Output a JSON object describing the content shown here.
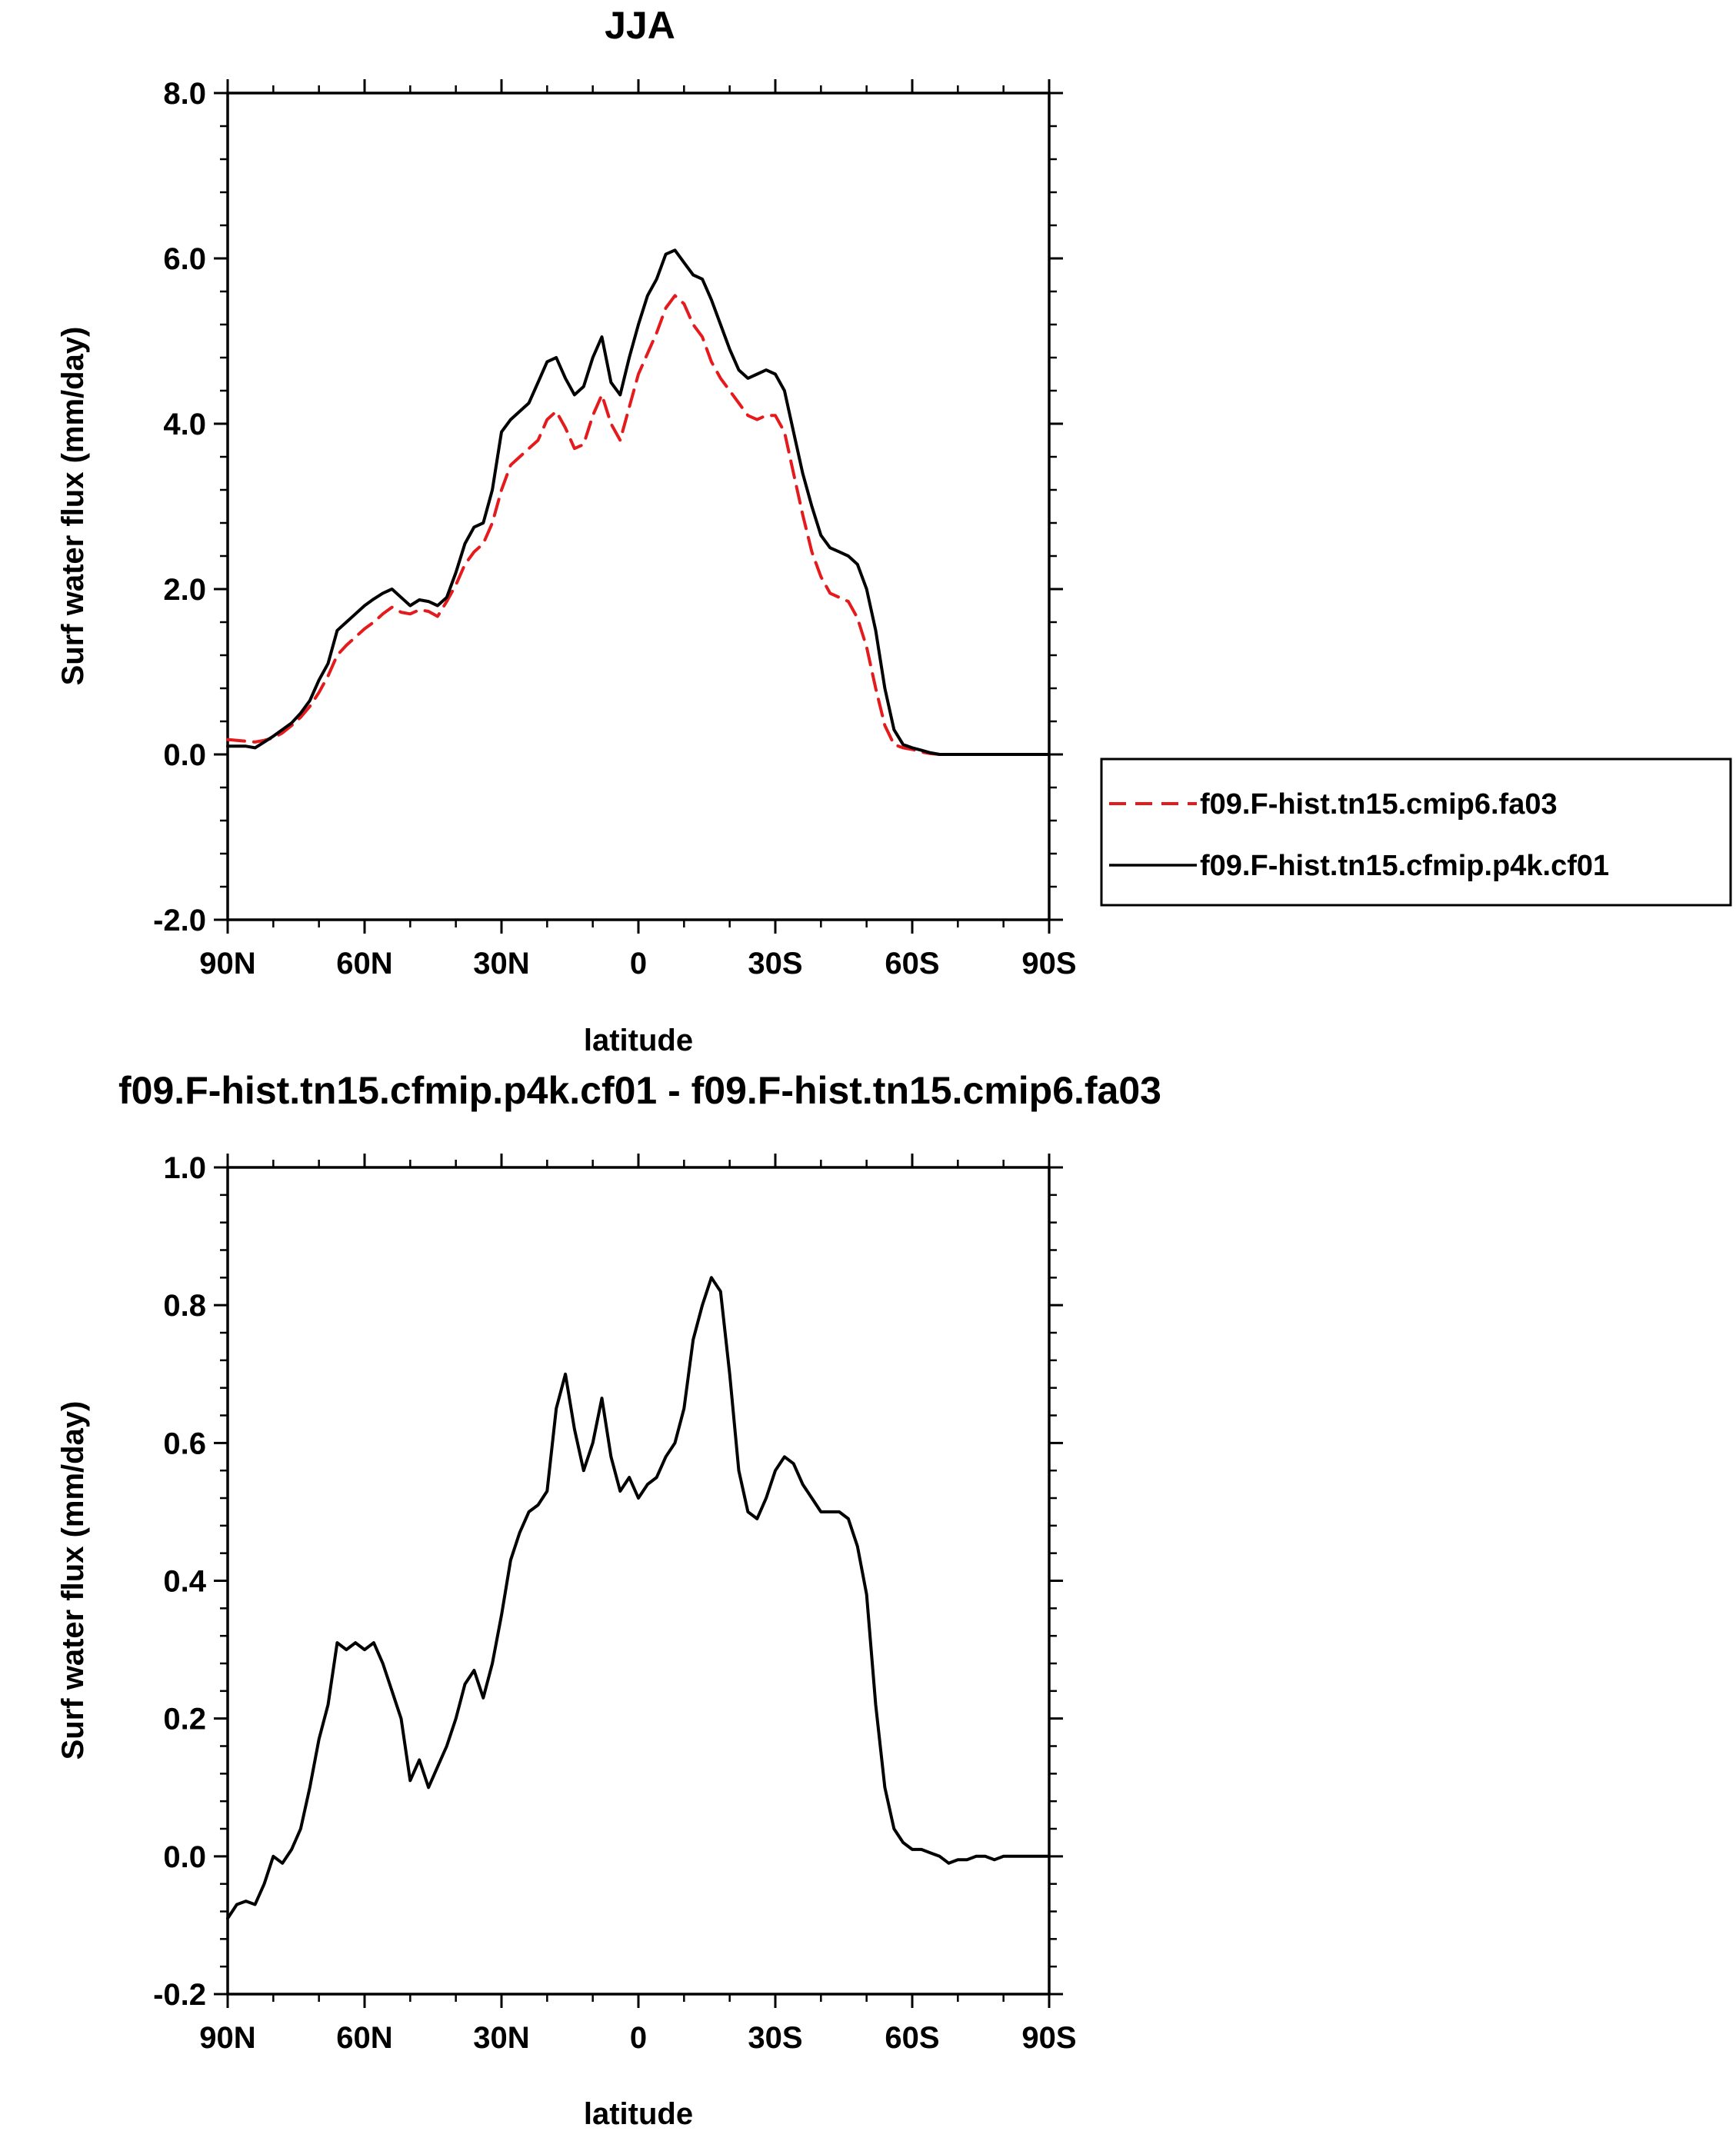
{
  "chart_data": [
    {
      "type": "line",
      "title": "JJA",
      "xlabel": "latitude",
      "ylabel": "Surf water flux (mm/day)",
      "xlim": [
        90,
        -90
      ],
      "ylim": [
        -2.0,
        8.0
      ],
      "x_ticks": [
        90,
        60,
        30,
        0,
        -30,
        -60,
        -90
      ],
      "x_tick_labels": [
        "90N",
        "60N",
        "30N",
        "0",
        "30S",
        "60S",
        "90S"
      ],
      "y_ticks": [
        -2,
        0,
        2,
        4,
        6,
        8
      ],
      "y_tick_labels": [
        "-2.0",
        "0.0",
        "2.0",
        "4.0",
        "6.0",
        "8.0"
      ],
      "legend_position": "right-outside",
      "series": [
        {
          "name": "f09.F-hist.tn15.cmip6.fa03",
          "color": "#e41a1c",
          "dash": "dashed",
          "x": [
            90,
            88,
            86,
            84,
            82,
            80,
            78,
            76,
            74,
            72,
            70,
            68,
            66,
            64,
            62,
            60,
            58,
            56,
            54,
            52,
            50,
            48,
            46,
            44,
            42,
            40,
            38,
            36,
            34,
            32,
            30,
            28,
            26,
            24,
            22,
            20,
            18,
            16,
            14,
            12,
            10,
            8,
            6,
            4,
            2,
            0,
            -2,
            -4,
            -6,
            -8,
            -10,
            -12,
            -14,
            -16,
            -18,
            -20,
            -22,
            -24,
            -26,
            -28,
            -30,
            -32,
            -34,
            -36,
            -38,
            -40,
            -42,
            -44,
            -46,
            -48,
            -50,
            -52,
            -54,
            -56,
            -58,
            -60,
            -62,
            -64,
            -66,
            -68,
            -70,
            -72,
            -74,
            -76,
            -78,
            -80,
            -82,
            -84,
            -86,
            -88,
            -90
          ],
          "y": [
            0.18,
            0.17,
            0.16,
            0.15,
            0.17,
            0.2,
            0.26,
            0.35,
            0.45,
            0.58,
            0.75,
            0.95,
            1.2,
            1.32,
            1.42,
            1.52,
            1.6,
            1.7,
            1.78,
            1.72,
            1.7,
            1.75,
            1.73,
            1.67,
            1.85,
            2.05,
            2.3,
            2.45,
            2.55,
            2.8,
            3.2,
            3.5,
            3.6,
            3.7,
            3.8,
            4.05,
            4.15,
            3.95,
            3.7,
            3.75,
            4.1,
            4.35,
            4.0,
            3.8,
            4.2,
            4.6,
            4.85,
            5.1,
            5.4,
            5.55,
            5.45,
            5.2,
            5.05,
            4.75,
            4.55,
            4.4,
            4.25,
            4.1,
            4.05,
            4.1,
            4.1,
            3.9,
            3.4,
            2.9,
            2.45,
            2.15,
            1.95,
            1.9,
            1.85,
            1.65,
            1.3,
            0.8,
            0.35,
            0.12,
            0.08,
            0.06,
            0.03,
            0.01,
            0.0,
            0.0,
            0.0,
            0.0,
            0.0,
            0.0,
            0.0,
            0.0,
            0.0,
            0.0,
            0.0,
            0.0,
            0.0
          ]
        },
        {
          "name": "f09.F-hist.tn15.cfmip.p4k.cf01",
          "color": "#000000",
          "dash": "solid",
          "x": [
            90,
            88,
            86,
            84,
            82,
            80,
            78,
            76,
            74,
            72,
            70,
            68,
            66,
            64,
            62,
            60,
            58,
            56,
            54,
            52,
            50,
            48,
            46,
            44,
            42,
            40,
            38,
            36,
            34,
            32,
            30,
            28,
            26,
            24,
            22,
            20,
            18,
            16,
            14,
            12,
            10,
            8,
            6,
            4,
            2,
            0,
            -2,
            -4,
            -6,
            -8,
            -10,
            -12,
            -14,
            -16,
            -18,
            -20,
            -22,
            -24,
            -26,
            -28,
            -30,
            -32,
            -34,
            -36,
            -38,
            -40,
            -42,
            -44,
            -46,
            -48,
            -50,
            -52,
            -54,
            -56,
            -58,
            -60,
            -62,
            -64,
            -66,
            -68,
            -70,
            -72,
            -74,
            -76,
            -78,
            -80,
            -82,
            -84,
            -86,
            -88,
            -90
          ],
          "y": [
            0.1,
            0.1,
            0.1,
            0.08,
            0.15,
            0.22,
            0.3,
            0.38,
            0.5,
            0.65,
            0.9,
            1.1,
            1.5,
            1.6,
            1.7,
            1.8,
            1.88,
            1.95,
            2.0,
            1.9,
            1.8,
            1.87,
            1.85,
            1.8,
            1.9,
            2.2,
            2.55,
            2.75,
            2.8,
            3.2,
            3.9,
            4.05,
            4.15,
            4.25,
            4.5,
            4.75,
            4.8,
            4.55,
            4.35,
            4.45,
            4.8,
            5.05,
            4.5,
            4.35,
            4.8,
            5.2,
            5.55,
            5.75,
            6.05,
            6.1,
            5.95,
            5.8,
            5.75,
            5.5,
            5.2,
            4.9,
            4.65,
            4.55,
            4.6,
            4.65,
            4.6,
            4.4,
            3.9,
            3.4,
            3.0,
            2.65,
            2.5,
            2.45,
            2.4,
            2.3,
            2.0,
            1.5,
            0.8,
            0.3,
            0.12,
            0.08,
            0.05,
            0.02,
            0.0,
            0.0,
            0.0,
            0.0,
            0.0,
            0.0,
            0.0,
            0.0,
            0.0,
            0.0,
            0.0,
            0.0,
            0.0
          ]
        }
      ]
    },
    {
      "type": "line",
      "title": "f09.F-hist.tn15.cfmip.p4k.cf01 - f09.F-hist.tn15.cmip6.fa03",
      "xlabel": "latitude",
      "ylabel": "Surf water flux (mm/day)",
      "xlim": [
        90,
        -90
      ],
      "ylim": [
        -0.2,
        1.0
      ],
      "x_ticks": [
        90,
        60,
        30,
        0,
        -30,
        -60,
        -90
      ],
      "x_tick_labels": [
        "90N",
        "60N",
        "30N",
        "0",
        "30S",
        "60S",
        "90S"
      ],
      "y_ticks": [
        -0.2,
        0,
        0.2,
        0.4,
        0.6,
        0.8,
        1.0
      ],
      "y_tick_labels": [
        "-0.2",
        "0.0",
        "0.2",
        "0.4",
        "0.6",
        "0.8",
        "1.0"
      ],
      "series": [
        {
          "color": "#000000",
          "dash": "solid",
          "x": [
            90,
            88,
            86,
            84,
            82,
            80,
            78,
            76,
            74,
            72,
            70,
            68,
            66,
            64,
            62,
            60,
            58,
            56,
            54,
            52,
            50,
            48,
            46,
            44,
            42,
            40,
            38,
            36,
            34,
            32,
            30,
            28,
            26,
            24,
            22,
            20,
            18,
            16,
            14,
            12,
            10,
            8,
            6,
            4,
            2,
            0,
            -2,
            -4,
            -6,
            -8,
            -10,
            -12,
            -14,
            -16,
            -18,
            -20,
            -22,
            -24,
            -26,
            -28,
            -30,
            -32,
            -34,
            -36,
            -38,
            -40,
            -42,
            -44,
            -46,
            -48,
            -50,
            -52,
            -54,
            -56,
            -58,
            -60,
            -62,
            -64,
            -66,
            -68,
            -70,
            -72,
            -74,
            -76,
            -78,
            -80,
            -82,
            -84,
            -86,
            -88,
            -90
          ],
          "y": [
            -0.09,
            -0.07,
            -0.065,
            -0.07,
            -0.04,
            0.0,
            -0.01,
            0.01,
            0.04,
            0.1,
            0.17,
            0.22,
            0.31,
            0.3,
            0.31,
            0.3,
            0.31,
            0.28,
            0.24,
            0.2,
            0.11,
            0.14,
            0.1,
            0.13,
            0.16,
            0.2,
            0.25,
            0.27,
            0.23,
            0.28,
            0.35,
            0.43,
            0.47,
            0.5,
            0.51,
            0.53,
            0.65,
            0.7,
            0.62,
            0.56,
            0.6,
            0.665,
            0.58,
            0.53,
            0.55,
            0.52,
            0.54,
            0.55,
            0.58,
            0.6,
            0.65,
            0.75,
            0.8,
            0.84,
            0.82,
            0.7,
            0.56,
            0.5,
            0.49,
            0.52,
            0.56,
            0.58,
            0.57,
            0.54,
            0.52,
            0.5,
            0.5,
            0.5,
            0.49,
            0.45,
            0.38,
            0.22,
            0.1,
            0.04,
            0.02,
            0.01,
            0.01,
            0.005,
            0.0,
            -0.01,
            -0.005,
            -0.005,
            0.0,
            0.0,
            -0.005,
            0.0,
            0.0,
            0.0,
            0.0,
            0.0,
            0.0
          ]
        }
      ]
    }
  ]
}
